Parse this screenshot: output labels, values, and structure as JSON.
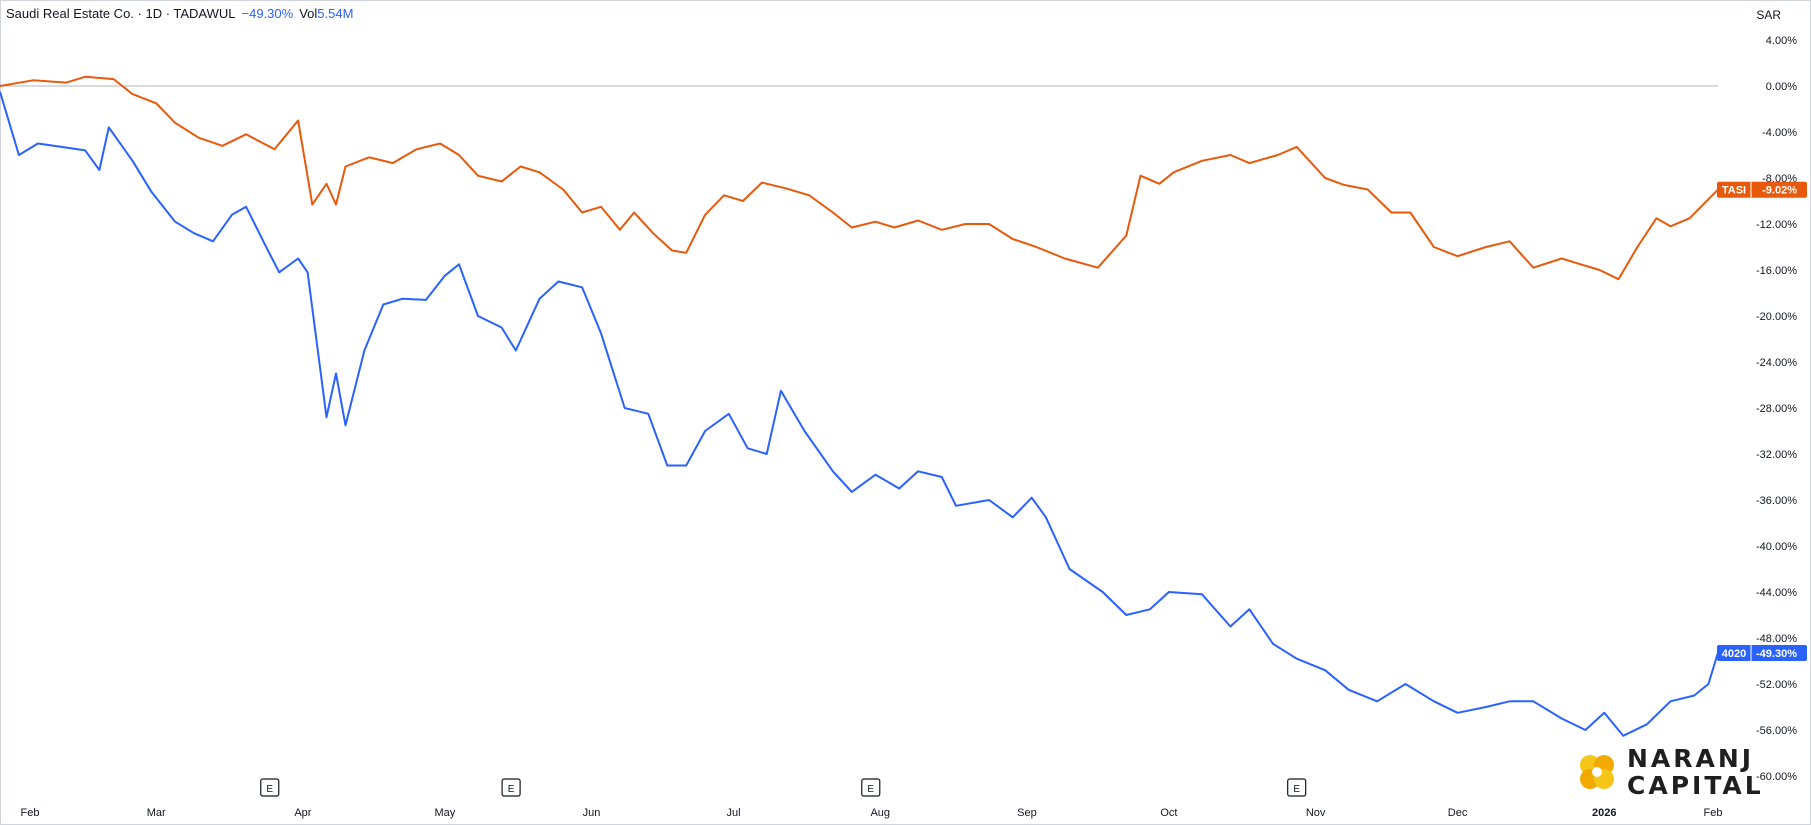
{
  "legend": {
    "symbol": "Saudi Real Estate Co. · 1D · TADAWUL",
    "change": "−49.30%",
    "volume_label": "Vol",
    "volume_value": "5.54M"
  },
  "currency": "SAR",
  "logo": {
    "line1": "NARANJ",
    "line2": "CAPITAL"
  },
  "colors": {
    "tasi": "#e8590c",
    "stock": "#2962ff",
    "baseline": "#b2b5be"
  },
  "chart_data": {
    "type": "line",
    "x_tick_labels": [
      "Feb",
      "Mar",
      "Apr",
      "May",
      "Jun",
      "Jul",
      "Aug",
      "Sep",
      "Oct",
      "Nov",
      "Dec",
      "2026",
      "Feb"
    ],
    "y_tick_labels": [
      "4.00%",
      "0.00%",
      "-4.00%",
      "-8.00%",
      "-12.00%",
      "-16.00%",
      "-20.00%",
      "-24.00%",
      "-28.00%",
      "-32.00%",
      "-36.00%",
      "-40.00%",
      "-44.00%",
      "-48.00%",
      "-52.00%",
      "-56.00%",
      "-60.00%"
    ],
    "ylim": [
      -60,
      4
    ],
    "x_domain": [
      "2025-01-27",
      "2026-02-01"
    ],
    "grid": false,
    "earnings_markers": {
      "label": "E",
      "dates": [
        "2025-03-25",
        "2025-05-15",
        "2025-07-30",
        "2025-10-28"
      ]
    },
    "series": [
      {
        "name": "TASI",
        "end_label": "-9.02%",
        "points": [
          [
            "2025-01-27",
            0
          ],
          [
            "2025-02-03",
            0.5
          ],
          [
            "2025-02-10",
            0.3
          ],
          [
            "2025-02-14",
            0.8
          ],
          [
            "2025-02-20",
            0.6
          ],
          [
            "2025-02-24",
            -0.7
          ],
          [
            "2025-03-01",
            -1.5
          ],
          [
            "2025-03-05",
            -3.2
          ],
          [
            "2025-03-10",
            -4.5
          ],
          [
            "2025-03-15",
            -5.2
          ],
          [
            "2025-03-20",
            -4.2
          ],
          [
            "2025-03-26",
            -5.5
          ],
          [
            "2025-03-31",
            -3.0
          ],
          [
            "2025-04-03",
            -10.3
          ],
          [
            "2025-04-06",
            -8.5
          ],
          [
            "2025-04-08",
            -10.3
          ],
          [
            "2025-04-10",
            -7.0
          ],
          [
            "2025-04-15",
            -6.2
          ],
          [
            "2025-04-20",
            -6.7
          ],
          [
            "2025-04-25",
            -5.5
          ],
          [
            "2025-04-30",
            -5.0
          ],
          [
            "2025-05-04",
            -6.0
          ],
          [
            "2025-05-08",
            -7.8
          ],
          [
            "2025-05-13",
            -8.3
          ],
          [
            "2025-05-17",
            -7.0
          ],
          [
            "2025-05-21",
            -7.5
          ],
          [
            "2025-05-26",
            -9.0
          ],
          [
            "2025-05-30",
            -11.0
          ],
          [
            "2025-06-03",
            -10.5
          ],
          [
            "2025-06-07",
            -12.5
          ],
          [
            "2025-06-10",
            -11.0
          ],
          [
            "2025-06-14",
            -12.8
          ],
          [
            "2025-06-18",
            -14.3
          ],
          [
            "2025-06-21",
            -14.5
          ],
          [
            "2025-06-25",
            -11.2
          ],
          [
            "2025-06-29",
            -9.5
          ],
          [
            "2025-07-03",
            -10.0
          ],
          [
            "2025-07-07",
            -8.4
          ],
          [
            "2025-07-12",
            -8.9
          ],
          [
            "2025-07-17",
            -9.5
          ],
          [
            "2025-07-22",
            -11.0
          ],
          [
            "2025-07-26",
            -12.3
          ],
          [
            "2025-07-31",
            -11.8
          ],
          [
            "2025-08-04",
            -12.3
          ],
          [
            "2025-08-09",
            -11.7
          ],
          [
            "2025-08-14",
            -12.5
          ],
          [
            "2025-08-19",
            -12.0
          ],
          [
            "2025-08-24",
            -12.0
          ],
          [
            "2025-08-29",
            -13.3
          ],
          [
            "2025-09-03",
            -14.0
          ],
          [
            "2025-09-09",
            -15.0
          ],
          [
            "2025-09-16",
            -15.8
          ],
          [
            "2025-09-22",
            -13.0
          ],
          [
            "2025-09-25",
            -7.8
          ],
          [
            "2025-09-29",
            -8.5
          ],
          [
            "2025-10-02",
            -7.5
          ],
          [
            "2025-10-08",
            -6.5
          ],
          [
            "2025-10-14",
            -6.0
          ],
          [
            "2025-10-18",
            -6.7
          ],
          [
            "2025-10-24",
            -6.0
          ],
          [
            "2025-10-28",
            -5.3
          ],
          [
            "2025-11-03",
            -8.0
          ],
          [
            "2025-11-07",
            -8.6
          ],
          [
            "2025-11-12",
            -9.0
          ],
          [
            "2025-11-17",
            -11.0
          ],
          [
            "2025-11-21",
            -11.0
          ],
          [
            "2025-11-26",
            -14.0
          ],
          [
            "2025-12-01",
            -14.8
          ],
          [
            "2025-12-07",
            -14.0
          ],
          [
            "2025-12-12",
            -13.5
          ],
          [
            "2025-12-17",
            -15.8
          ],
          [
            "2025-12-23",
            -15.0
          ],
          [
            "2025-12-27",
            -15.5
          ],
          [
            "2025-12-31",
            -16.0
          ],
          [
            "2026-01-04",
            -16.8
          ],
          [
            "2026-01-08",
            -14.0
          ],
          [
            "2026-01-12",
            -11.5
          ],
          [
            "2026-01-15",
            -12.2
          ],
          [
            "2026-01-19",
            -11.5
          ],
          [
            "2026-01-25",
            -9.02
          ]
        ]
      },
      {
        "name": "4020",
        "end_label": "-49.30%",
        "points": [
          [
            "2025-01-27",
            -0.5
          ],
          [
            "2025-01-31",
            -6.0
          ],
          [
            "2025-02-04",
            -5.0
          ],
          [
            "2025-02-09",
            -5.3
          ],
          [
            "2025-02-14",
            -5.6
          ],
          [
            "2025-02-17",
            -7.3
          ],
          [
            "2025-02-19",
            -3.6
          ],
          [
            "2025-02-24",
            -6.5
          ],
          [
            "2025-02-28",
            -9.2
          ],
          [
            "2025-03-05",
            -11.8
          ],
          [
            "2025-03-09",
            -12.8
          ],
          [
            "2025-03-13",
            -13.5
          ],
          [
            "2025-03-17",
            -11.2
          ],
          [
            "2025-03-20",
            -10.5
          ],
          [
            "2025-03-24",
            -13.8
          ],
          [
            "2025-03-27",
            -16.2
          ],
          [
            "2025-03-31",
            -15.0
          ],
          [
            "2025-04-02",
            -16.2
          ],
          [
            "2025-04-06",
            -28.8
          ],
          [
            "2025-04-08",
            -25.0
          ],
          [
            "2025-04-10",
            -29.5
          ],
          [
            "2025-04-14",
            -23.0
          ],
          [
            "2025-04-18",
            -19.0
          ],
          [
            "2025-04-22",
            -18.5
          ],
          [
            "2025-04-27",
            -18.6
          ],
          [
            "2025-05-01",
            -16.5
          ],
          [
            "2025-05-04",
            -15.5
          ],
          [
            "2025-05-08",
            -20.0
          ],
          [
            "2025-05-13",
            -21.0
          ],
          [
            "2025-05-16",
            -23.0
          ],
          [
            "2025-05-21",
            -18.5
          ],
          [
            "2025-05-25",
            -17.0
          ],
          [
            "2025-05-30",
            -17.5
          ],
          [
            "2025-06-03",
            -21.5
          ],
          [
            "2025-06-08",
            -28.0
          ],
          [
            "2025-06-13",
            -28.5
          ],
          [
            "2025-06-17",
            -33.0
          ],
          [
            "2025-06-21",
            -33.0
          ],
          [
            "2025-06-25",
            -30.0
          ],
          [
            "2025-06-30",
            -28.5
          ],
          [
            "2025-07-04",
            -31.5
          ],
          [
            "2025-07-08",
            -32.0
          ],
          [
            "2025-07-11",
            -26.5
          ],
          [
            "2025-07-16",
            -30.0
          ],
          [
            "2025-07-22",
            -33.5
          ],
          [
            "2025-07-26",
            -35.3
          ],
          [
            "2025-07-31",
            -33.8
          ],
          [
            "2025-08-05",
            -35.0
          ],
          [
            "2025-08-09",
            -33.5
          ],
          [
            "2025-08-14",
            -34.0
          ],
          [
            "2025-08-17",
            -36.5
          ],
          [
            "2025-08-24",
            -36.0
          ],
          [
            "2025-08-29",
            -37.5
          ],
          [
            "2025-09-02",
            -35.8
          ],
          [
            "2025-09-05",
            -37.5
          ],
          [
            "2025-09-10",
            -42.0
          ],
          [
            "2025-09-17",
            -44.0
          ],
          [
            "2025-09-22",
            -46.0
          ],
          [
            "2025-09-27",
            -45.5
          ],
          [
            "2025-10-01",
            -44.0
          ],
          [
            "2025-10-08",
            -44.2
          ],
          [
            "2025-10-14",
            -47.0
          ],
          [
            "2025-10-18",
            -45.5
          ],
          [
            "2025-10-23",
            -48.5
          ],
          [
            "2025-10-28",
            -49.8
          ],
          [
            "2025-11-03",
            -50.8
          ],
          [
            "2025-11-08",
            -52.5
          ],
          [
            "2025-11-14",
            -53.5
          ],
          [
            "2025-11-20",
            -52.0
          ],
          [
            "2025-11-26",
            -53.5
          ],
          [
            "2025-12-01",
            -54.5
          ],
          [
            "2025-12-07",
            -54.0
          ],
          [
            "2025-12-12",
            -53.5
          ],
          [
            "2025-12-17",
            -53.5
          ],
          [
            "2025-12-23",
            -55.0
          ],
          [
            "2025-12-28",
            -56.0
          ],
          [
            "2026-01-01",
            -54.5
          ],
          [
            "2026-01-05",
            -56.5
          ],
          [
            "2026-01-10",
            -55.5
          ],
          [
            "2026-01-15",
            -53.5
          ],
          [
            "2026-01-20",
            -53.0
          ],
          [
            "2026-01-23",
            -52.0
          ],
          [
            "2026-01-25",
            -49.3
          ]
        ]
      }
    ]
  }
}
